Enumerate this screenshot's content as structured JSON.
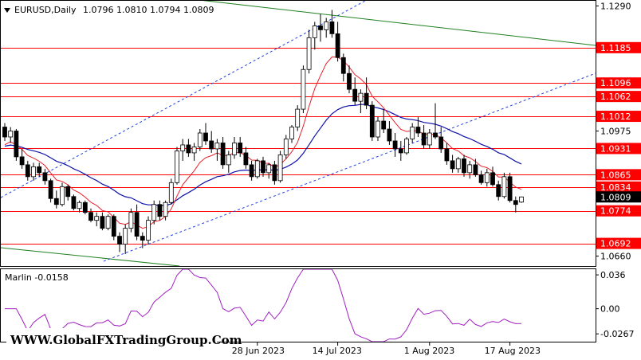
{
  "header": {
    "symbol_tf": "EURUSD,Daily",
    "ohlc": "1.0796 1.0810 1.0794 1.0809",
    "indicator_label": "Marlin -0.0158"
  },
  "watermark": "WWW.GlobalFXTradingGroup.Com",
  "colors": {
    "level": "#ff0000",
    "blue_ma": "#1010aa",
    "red_ma": "#e8202a",
    "channel": "#2040e0",
    "green": "#208020",
    "osc": "#a020c0",
    "candle_up": "#ffffff",
    "candle_down": "#000000"
  },
  "chart_data": {
    "type": "candlestick",
    "symbol": "EURUSD",
    "timeframe": "Daily",
    "ylim": [
      1.0635,
      1.1305
    ],
    "y_ticks": [
      "1.1290",
      "1.1185",
      "1.1096",
      "1.1062",
      "1.1012",
      "1.0975",
      "1.0931",
      "1.0865",
      "1.0834",
      "1.0809",
      "1.0774",
      "1.0692",
      "1.0660"
    ],
    "x_ticks": [
      "28 Jun 2023",
      "14 Jul 2023",
      "1 Aug 2023",
      "17 Aug 2023"
    ],
    "x_tick_index": [
      44,
      58,
      74,
      88
    ],
    "levels": [
      1.1185,
      1.1096,
      1.1062,
      1.1012,
      1.0931,
      1.0865,
      1.0834,
      1.0774,
      1.0692
    ],
    "current_price": 1.0809,
    "candles": [
      [
        1.0985,
        1.0995,
        1.095,
        1.096
      ],
      [
        1.096,
        1.0985,
        1.0945,
        1.0975
      ],
      [
        1.0975,
        1.098,
        1.09,
        1.091
      ],
      [
        1.091,
        1.093,
        1.088,
        1.089
      ],
      [
        1.089,
        1.09,
        1.085,
        1.086
      ],
      [
        1.086,
        1.0895,
        1.085,
        1.0885
      ],
      [
        1.0885,
        1.0895,
        1.086,
        1.087
      ],
      [
        1.087,
        1.088,
        1.084,
        1.085
      ],
      [
        1.085,
        1.0855,
        1.0795,
        1.0805
      ],
      [
        1.0805,
        1.0825,
        1.078,
        1.079
      ],
      [
        1.079,
        1.0845,
        1.0785,
        1.0835
      ],
      [
        1.0835,
        1.084,
        1.08,
        1.081
      ],
      [
        1.081,
        1.0815,
        1.0775,
        1.078
      ],
      [
        1.078,
        1.08,
        1.077,
        1.0795
      ],
      [
        1.0795,
        1.08,
        1.0765,
        1.077
      ],
      [
        1.077,
        1.078,
        1.0745,
        1.075
      ],
      [
        1.075,
        1.077,
        1.0735,
        1.076
      ],
      [
        1.076,
        1.077,
        1.0725,
        1.073
      ],
      [
        1.073,
        1.0765,
        1.0725,
        1.076
      ],
      [
        1.076,
        1.0765,
        1.07,
        1.071
      ],
      [
        1.071,
        1.072,
        1.067,
        1.069
      ],
      [
        1.069,
        1.074,
        1.0665,
        1.073
      ],
      [
        1.073,
        1.078,
        1.072,
        1.077
      ],
      [
        1.077,
        1.079,
        1.07,
        1.071
      ],
      [
        1.071,
        1.072,
        1.068,
        1.07
      ],
      [
        1.07,
        1.076,
        1.069,
        1.075
      ],
      [
        1.075,
        1.08,
        1.074,
        1.079
      ],
      [
        1.079,
        1.08,
        1.075,
        1.076
      ],
      [
        1.076,
        1.08,
        1.075,
        1.0795
      ],
      [
        1.0795,
        1.0855,
        1.079,
        1.0845
      ],
      [
        1.0845,
        1.0935,
        1.084,
        1.0925
      ],
      [
        1.0925,
        1.0955,
        1.09,
        1.094
      ],
      [
        1.094,
        1.0955,
        1.091,
        1.092
      ],
      [
        1.092,
        1.0945,
        1.09,
        1.0935
      ],
      [
        1.0935,
        1.098,
        1.0925,
        1.097
      ],
      [
        1.097,
        1.0995,
        1.094,
        1.095
      ],
      [
        1.095,
        1.0975,
        1.092,
        1.093
      ],
      [
        1.093,
        1.0955,
        1.09,
        1.0945
      ],
      [
        1.0945,
        1.096,
        1.088,
        1.089
      ],
      [
        1.089,
        1.0925,
        1.087,
        1.0915
      ],
      [
        1.0915,
        1.096,
        1.0905,
        1.0945
      ],
      [
        1.0945,
        1.096,
        1.091,
        1.092
      ],
      [
        1.092,
        1.0935,
        1.088,
        1.089
      ],
      [
        1.089,
        1.09,
        1.085,
        1.086
      ],
      [
        1.086,
        1.0905,
        1.0855,
        1.09
      ],
      [
        1.09,
        1.091,
        1.086,
        1.087
      ],
      [
        1.087,
        1.0895,
        1.0855,
        1.089
      ],
      [
        1.089,
        1.09,
        1.084,
        1.085
      ],
      [
        1.085,
        1.0925,
        1.0845,
        1.0915
      ],
      [
        1.0915,
        1.0965,
        1.0905,
        1.0955
      ],
      [
        1.0955,
        1.099,
        1.0945,
        1.0985
      ],
      [
        1.0985,
        1.104,
        1.0975,
        1.103
      ],
      [
        1.103,
        1.114,
        1.102,
        1.113
      ],
      [
        1.113,
        1.123,
        1.112,
        1.121
      ],
      [
        1.121,
        1.125,
        1.118,
        1.124
      ],
      [
        1.124,
        1.127,
        1.12,
        1.123
      ],
      [
        1.123,
        1.126,
        1.121,
        1.125
      ],
      [
        1.125,
        1.128,
        1.121,
        1.122
      ],
      [
        1.122,
        1.125,
        1.115,
        1.116
      ],
      [
        1.116,
        1.117,
        1.11,
        1.112
      ],
      [
        1.112,
        1.114,
        1.107,
        1.108
      ],
      [
        1.108,
        1.111,
        1.104,
        1.105
      ],
      [
        1.105,
        1.108,
        1.102,
        1.107
      ],
      [
        1.107,
        1.111,
        1.103,
        1.104
      ],
      [
        1.104,
        1.105,
        1.095,
        1.096
      ],
      [
        1.096,
        1.101,
        1.095,
        1.1
      ],
      [
        1.1,
        1.103,
        1.097,
        1.098
      ],
      [
        1.098,
        1.1,
        1.094,
        1.095
      ],
      [
        1.095,
        1.097,
        1.091,
        1.093
      ],
      [
        1.093,
        1.095,
        1.09,
        1.092
      ],
      [
        1.092,
        1.096,
        1.0915,
        1.0955
      ],
      [
        1.0955,
        1.0995,
        1.0945,
        1.0985
      ],
      [
        1.0985,
        1.101,
        1.096,
        1.097
      ],
      [
        1.097,
        1.099,
        1.093,
        1.094
      ],
      [
        1.094,
        1.098,
        1.093,
        1.097
      ],
      [
        1.097,
        1.1045,
        1.0955,
        1.096
      ],
      [
        1.096,
        1.0985,
        1.092,
        1.093
      ],
      [
        1.093,
        1.0945,
        1.089,
        1.09
      ],
      [
        1.09,
        1.0915,
        1.087,
        1.088
      ],
      [
        1.088,
        1.091,
        1.087,
        1.0905
      ],
      [
        1.0905,
        1.0915,
        1.086,
        1.087
      ],
      [
        1.087,
        1.09,
        1.0855,
        1.089
      ],
      [
        1.089,
        1.0905,
        1.086,
        1.0865
      ],
      [
        1.0865,
        1.0875,
        1.084,
        1.0845
      ],
      [
        1.0845,
        1.088,
        1.0835,
        1.087
      ],
      [
        1.087,
        1.0885,
        1.0835,
        1.084
      ],
      [
        1.084,
        1.085,
        1.08,
        1.081
      ],
      [
        1.081,
        1.087,
        1.0805,
        1.086
      ],
      [
        1.086,
        1.087,
        1.0795,
        1.08
      ],
      [
        1.08,
        1.081,
        1.077,
        1.079
      ],
      [
        1.0796,
        1.081,
        1.0794,
        1.0809
      ]
    ],
    "blue_ma_start": 1.0935,
    "red_ma_start": 1.0935,
    "indicator": {
      "name": "Marlin",
      "value": -0.0158,
      "ylim": [
        -0.035,
        0.042
      ],
      "y_ticks": [
        "0.036",
        "0.00",
        "-0.0267"
      ]
    }
  }
}
